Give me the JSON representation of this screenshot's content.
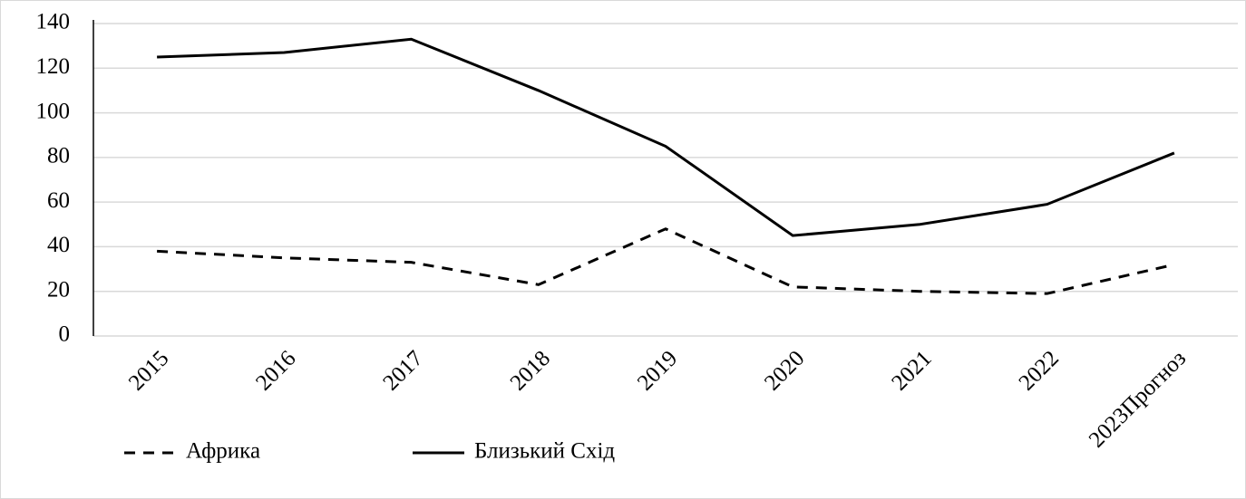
{
  "chart_data": {
    "type": "line",
    "categories": [
      "2015",
      "2016",
      "2017",
      "2018",
      "2019",
      "2020",
      "2021",
      "2022",
      "2023Прогноз"
    ],
    "series": [
      {
        "name": "Африка",
        "color": "#000000",
        "linestyle": "dashed",
        "values": [
          38,
          35,
          33,
          23,
          48,
          22,
          20,
          19,
          32
        ]
      },
      {
        "name": "Близький Схід",
        "color": "#000000",
        "linestyle": "solid",
        "values": [
          125,
          127,
          133,
          110,
          85,
          45,
          50,
          59,
          82
        ]
      }
    ],
    "ylim": [
      0,
      140
    ],
    "yticks": [
      0,
      20,
      40,
      60,
      80,
      100,
      120,
      140
    ],
    "grid": true,
    "legend": "bottom-left"
  }
}
